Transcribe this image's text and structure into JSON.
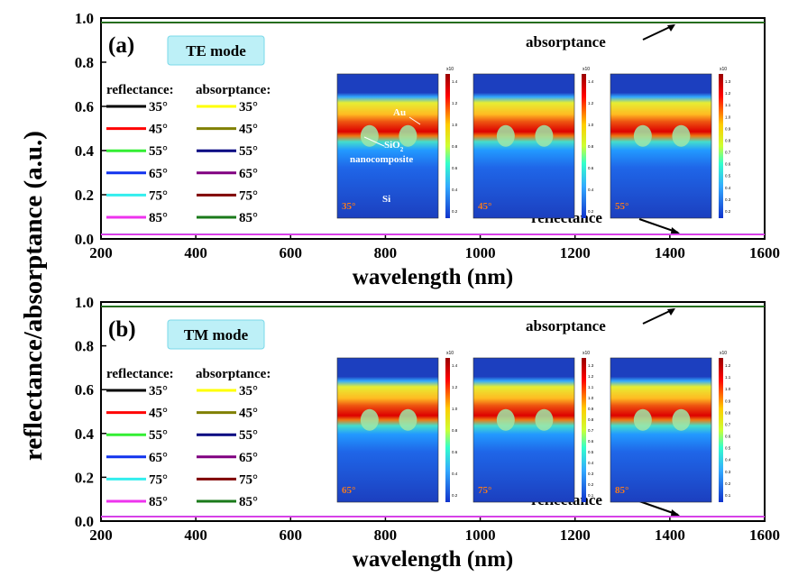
{
  "figure": {
    "ylabel": "reflectance/absorptance (a.u.)"
  },
  "chart_data": [
    {
      "type": "line",
      "panel_label": "(a)",
      "mode_box": "TE mode",
      "xlabel": "wavelength (nm)",
      "xlim": [
        200,
        1600
      ],
      "ylim": [
        0,
        1.0
      ],
      "x_ticks": [
        "200",
        "400",
        "600",
        "800",
        "1000",
        "1200",
        "1400",
        "1600"
      ],
      "y_ticks": [
        "0.0",
        "0.2",
        "0.4",
        "0.6",
        "0.8",
        "1.0"
      ],
      "legend_headers": [
        "reflectance:",
        "absorptance:"
      ],
      "annotations": [
        "absorptance",
        "reflectance"
      ],
      "reflectance_series": [
        {
          "name": "35°",
          "color": "#000000",
          "x": [
            200,
            1600
          ],
          "y": [
            0.02,
            0.02
          ]
        },
        {
          "name": "45°",
          "color": "#ff0000",
          "x": [
            200,
            1600
          ],
          "y": [
            0.02,
            0.02
          ]
        },
        {
          "name": "55°",
          "color": "#33ee33",
          "x": [
            200,
            1600
          ],
          "y": [
            0.02,
            0.02
          ]
        },
        {
          "name": "65°",
          "color": "#1133ee",
          "x": [
            200,
            1600
          ],
          "y": [
            0.02,
            0.02
          ]
        },
        {
          "name": "75°",
          "color": "#33eeee",
          "x": [
            200,
            1600
          ],
          "y": [
            0.02,
            0.02
          ]
        },
        {
          "name": "85°",
          "color": "#ee33ee",
          "x": [
            200,
            1600
          ],
          "y": [
            0.02,
            0.02
          ]
        }
      ],
      "absorptance_series": [
        {
          "name": "35°",
          "color": "#ffff00",
          "x": [
            200,
            1600
          ],
          "y": [
            0.98,
            0.98
          ]
        },
        {
          "name": "45°",
          "color": "#808000",
          "x": [
            200,
            1600
          ],
          "y": [
            0.98,
            0.98
          ]
        },
        {
          "name": "55°",
          "color": "#000080",
          "x": [
            200,
            1600
          ],
          "y": [
            0.98,
            0.98
          ]
        },
        {
          "name": "65°",
          "color": "#800080",
          "x": [
            200,
            1600
          ],
          "y": [
            0.98,
            0.98
          ]
        },
        {
          "name": "75°",
          "color": "#800000",
          "x": [
            200,
            1600
          ],
          "y": [
            0.98,
            0.98
          ]
        },
        {
          "name": "85°",
          "color": "#1a7a1a",
          "x": [
            200,
            1600
          ],
          "y": [
            0.98,
            0.98
          ]
        }
      ],
      "insets": [
        {
          "angle": "35°",
          "labels": {
            "au": "Au",
            "sio2": "SiO",
            "sio2_sub": "2",
            "nano": "nanocomposite",
            "si": "Si"
          },
          "cb_exp": "x10",
          "cb_ticks": [
            "1.4",
            "1.2",
            "1.0",
            "0.8",
            "0.6",
            "0.4",
            "0.2"
          ]
        },
        {
          "angle": "45°",
          "cb_exp": "x10",
          "cb_ticks": [
            "1.4",
            "1.2",
            "1.0",
            "0.8",
            "0.6",
            "0.4",
            "0.2"
          ]
        },
        {
          "angle": "55°",
          "cb_exp": "x10",
          "cb_ticks": [
            "1.3",
            "1.2",
            "1.1",
            "1.0",
            "0.9",
            "0.8",
            "0.7",
            "0.6",
            "0.5",
            "0.4",
            "0.3",
            "0.2"
          ]
        }
      ]
    },
    {
      "type": "line",
      "panel_label": "(b)",
      "mode_box": "TM mode",
      "xlabel": "wavelength (nm)",
      "xlim": [
        200,
        1600
      ],
      "ylim": [
        0,
        1.0
      ],
      "x_ticks": [
        "200",
        "400",
        "600",
        "800",
        "1000",
        "1200",
        "1400",
        "1600"
      ],
      "y_ticks": [
        "0.0",
        "0.2",
        "0.4",
        "0.6",
        "0.8",
        "1.0"
      ],
      "legend_headers": [
        "reflectance:",
        "absorptance:"
      ],
      "annotations": [
        "absorptance",
        "reflectance"
      ],
      "reflectance_series": [
        {
          "name": "35°",
          "color": "#000000",
          "x": [
            200,
            1600
          ],
          "y": [
            0.02,
            0.02
          ]
        },
        {
          "name": "45°",
          "color": "#ff0000",
          "x": [
            200,
            1600
          ],
          "y": [
            0.02,
            0.02
          ]
        },
        {
          "name": "55°",
          "color": "#33ee33",
          "x": [
            200,
            1600
          ],
          "y": [
            0.02,
            0.02
          ]
        },
        {
          "name": "65°",
          "color": "#1133ee",
          "x": [
            200,
            1600
          ],
          "y": [
            0.02,
            0.02
          ]
        },
        {
          "name": "75°",
          "color": "#33eeee",
          "x": [
            200,
            1600
          ],
          "y": [
            0.02,
            0.02
          ]
        },
        {
          "name": "85°",
          "color": "#ee33ee",
          "x": [
            200,
            1600
          ],
          "y": [
            0.02,
            0.02
          ]
        }
      ],
      "absorptance_series": [
        {
          "name": "35°",
          "color": "#ffff00",
          "x": [
            200,
            1600
          ],
          "y": [
            0.98,
            0.98
          ]
        },
        {
          "name": "45°",
          "color": "#808000",
          "x": [
            200,
            1600
          ],
          "y": [
            0.98,
            0.98
          ]
        },
        {
          "name": "55°",
          "color": "#000080",
          "x": [
            200,
            1600
          ],
          "y": [
            0.98,
            0.98
          ]
        },
        {
          "name": "65°",
          "color": "#800080",
          "x": [
            200,
            1600
          ],
          "y": [
            0.98,
            0.98
          ]
        },
        {
          "name": "75°",
          "color": "#800000",
          "x": [
            200,
            1600
          ],
          "y": [
            0.98,
            0.98
          ]
        },
        {
          "name": "85°",
          "color": "#1a7a1a",
          "x": [
            200,
            1600
          ],
          "y": [
            0.98,
            0.98
          ]
        }
      ],
      "insets": [
        {
          "angle": "65°",
          "cb_exp": "x10",
          "cb_ticks": [
            "1.4",
            "1.2",
            "1.0",
            "0.8",
            "0.6",
            "0.4",
            "0.2"
          ]
        },
        {
          "angle": "75°",
          "cb_exp": "x10",
          "cb_ticks": [
            "1.3",
            "1.2",
            "1.1",
            "1.0",
            "0.9",
            "0.8",
            "0.7",
            "0.6",
            "0.5",
            "0.4",
            "0.3",
            "0.2",
            "0.1"
          ]
        },
        {
          "angle": "85°",
          "cb_exp": "x10",
          "cb_ticks": [
            "1.2",
            "1.1",
            "1.0",
            "0.9",
            "0.8",
            "0.7",
            "0.6",
            "0.5",
            "0.4",
            "0.3",
            "0.2",
            "0.1"
          ]
        }
      ]
    }
  ]
}
